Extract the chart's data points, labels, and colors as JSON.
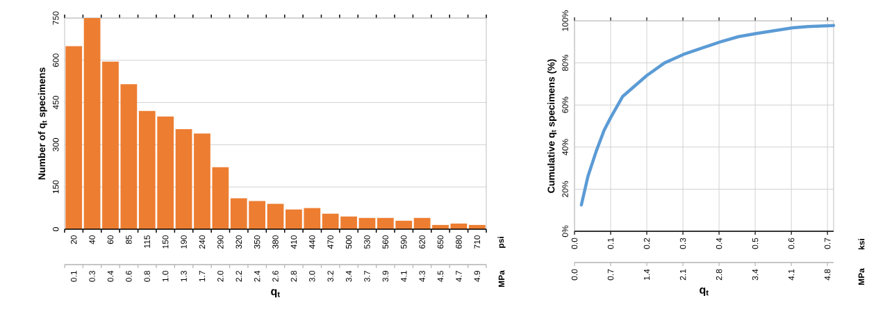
{
  "chart_data": [
    {
      "type": "bar",
      "xlabel": "q$_{t}$",
      "ylabel": "Number of q$_{t}$ specimens",
      "x2label": "MPa",
      "color": "#ed7d31",
      "categories": [
        "20",
        "40",
        "60",
        "85",
        "115",
        "150",
        "190",
        "240",
        "290",
        "320",
        "350",
        "380",
        "410",
        "440",
        "470",
        "500",
        "530",
        "560",
        "590",
        "620",
        "650",
        "680",
        "710"
      ],
      "values": [
        650,
        750,
        595,
        515,
        420,
        400,
        355,
        340,
        220,
        110,
        100,
        90,
        70,
        75,
        55,
        45,
        40,
        40,
        30,
        40,
        15,
        20,
        15
      ],
      "ylim": [
        0,
        750
      ],
      "yticks": [
        0,
        150,
        300,
        450,
        600,
        750
      ],
      "grid": "y",
      "annotations": [
        "psi",
        "0.1",
        "0.3",
        "0.4",
        "0.6",
        "0.8",
        "1.0",
        "1.3",
        "1.7",
        "2.0",
        "2.2",
        "2.4",
        "2.6",
        "2.8",
        "3.0",
        "3.2",
        "3.4",
        "3.7",
        "3.9",
        "4.1",
        "4.3",
        "4.5",
        "4.7",
        "4.9"
      ]
    },
    {
      "type": "line",
      "xlabel": "q$_{t}$",
      "ylabel": "Cumulative q$_{t}$ specimens (%)",
      "x2label": "MPa",
      "color": "#5b9bd5",
      "x": [
        0.019,
        0.037,
        0.06,
        0.082,
        0.1,
        0.133,
        0.2,
        0.249,
        0.301,
        0.403,
        0.454,
        0.503,
        0.604,
        0.646,
        0.717
      ],
      "values": [
        12.5,
        26,
        38,
        48,
        54,
        64,
        74,
        80,
        84,
        90,
        92.5,
        94,
        96.7,
        97.3,
        97.8
      ],
      "xlim": [
        0,
        0.717
      ],
      "xticks": [
        {
          "value": 0,
          "label": "0.0"
        },
        0.1,
        0.2,
        0.3,
        0.4,
        0.5,
        0.6,
        0.7
      ],
      "ylim": [
        0,
        100
      ],
      "yticks": [
        {
          "value": 0,
          "label": "0%"
        },
        {
          "value": 20,
          "label": "20%"
        },
        {
          "value": 40,
          "label": "40%"
        },
        {
          "value": 60,
          "label": "60%"
        },
        {
          "value": 80,
          "label": "80%"
        },
        {
          "value": 100,
          "label": "100%"
        }
      ],
      "grid": true,
      "x2lim": [
        0,
        4.944
      ],
      "x2ticks": [
        {
          "value": 0,
          "label": "0.0"
        },
        {
          "value": 0.689,
          "label": "0.7"
        },
        {
          "value": 1.379,
          "label": "1.4"
        },
        {
          "value": 2.068,
          "label": "2.1"
        },
        {
          "value": 2.758,
          "label": "2.8"
        },
        {
          "value": 3.447,
          "label": "3.4"
        },
        {
          "value": 4.137,
          "label": "4.1"
        },
        {
          "value": 4.826,
          "label": "4.8"
        }
      ],
      "annotations": [
        "ksi"
      ]
    }
  ]
}
